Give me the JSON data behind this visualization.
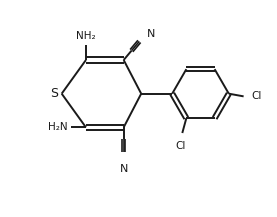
{
  "bg_color": "#ffffff",
  "line_color": "#1a1a1a",
  "line_width": 1.4,
  "font_size": 7.5,
  "fig_width": 2.77,
  "fig_height": 2.17,
  "dpi": 100,
  "xlim": [
    0,
    10
  ],
  "ylim": [
    0,
    8
  ]
}
